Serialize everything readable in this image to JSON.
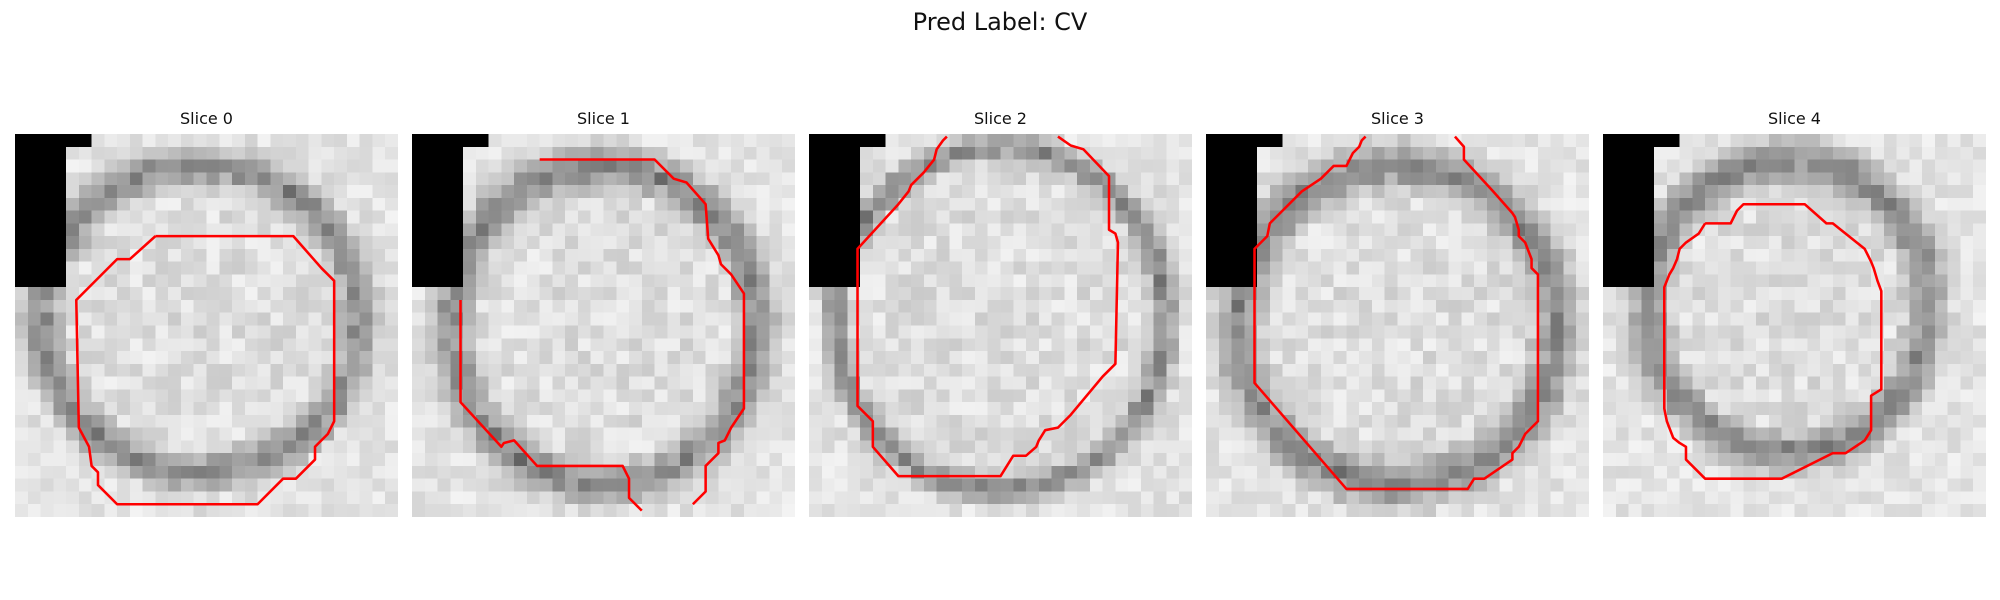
{
  "title": "Pred Label: CV",
  "panels": [
    {
      "label": "Slice 0"
    },
    {
      "label": "Slice 1"
    },
    {
      "label": "Slice 2"
    },
    {
      "label": "Slice 3"
    },
    {
      "label": "Slice 4"
    }
  ],
  "colors": {
    "contour": "#ff0000",
    "mask": "#000000"
  }
}
